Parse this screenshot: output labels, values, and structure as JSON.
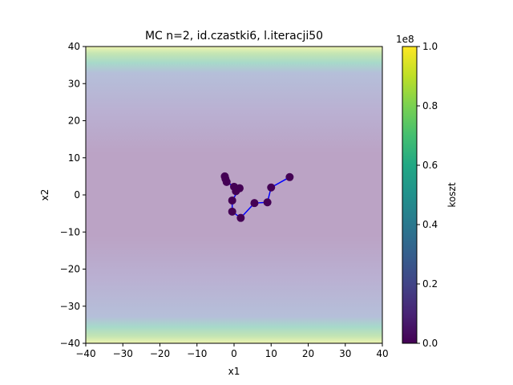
{
  "chart_data": {
    "type": "scatter",
    "title": "MC n=2, id.czastki6, l.iteracji50",
    "xlabel": "x1",
    "ylabel": "x2",
    "xlim": [
      -40,
      40
    ],
    "ylim": [
      -40,
      40
    ],
    "xticks": [
      -40,
      -30,
      -20,
      -10,
      0,
      10,
      20,
      30,
      40
    ],
    "yticks": [
      -40,
      -30,
      -20,
      -10,
      0,
      10,
      20,
      30,
      40
    ],
    "xtick_labels": [
      "−40",
      "−30",
      "−20",
      "−10",
      "0",
      "10",
      "20",
      "30",
      "40"
    ],
    "ytick_labels": [
      "−40",
      "−30",
      "−20",
      "−10",
      "0",
      "10",
      "20",
      "30",
      "40"
    ],
    "grid": false,
    "background": "filled contour of cost (viridis, semi-transparent); cost grows with |x2|",
    "path_color": "#0000ff",
    "marker_color": "#440154",
    "path": {
      "x": [
        15.0,
        10.0,
        9.0,
        5.5,
        1.8,
        -0.5,
        -0.5,
        1.5,
        0.5,
        0.0,
        -2.0,
        -2.5,
        -2.3
      ],
      "y": [
        4.8,
        2.0,
        -2.0,
        -2.2,
        -6.2,
        -4.5,
        -1.5,
        1.8,
        1.0,
        2.2,
        3.5,
        5.0,
        4.3
      ]
    },
    "colorbar": {
      "label": "koszt",
      "multiplier": "1e8",
      "range": [
        0.0,
        1.0
      ],
      "ticks": [
        0.0,
        0.2,
        0.4,
        0.6,
        0.8,
        1.0
      ],
      "tick_labels": [
        "0.0",
        "0.2",
        "0.4",
        "0.6",
        "0.8",
        "1.0"
      ],
      "colormap": "viridis"
    }
  }
}
